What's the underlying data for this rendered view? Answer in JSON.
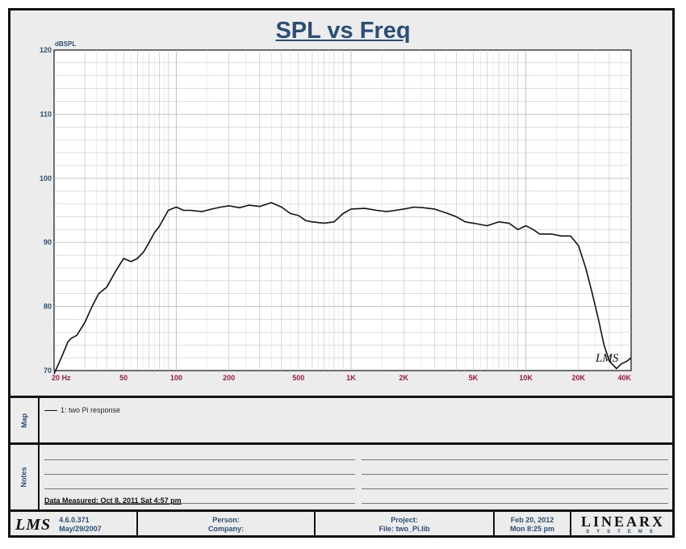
{
  "chart_data": {
    "type": "line",
    "title": "SPL vs Freq",
    "ylabel": "dBSPL",
    "xlabel": "",
    "x_scale": "log",
    "xlim": [
      20,
      40000
    ],
    "ylim": [
      70,
      120
    ],
    "grid": true,
    "x_ticks": [
      {
        "value": 20,
        "label": "20  Hz"
      },
      {
        "value": 50,
        "label": "50"
      },
      {
        "value": 100,
        "label": "100"
      },
      {
        "value": 200,
        "label": "200"
      },
      {
        "value": 500,
        "label": "500"
      },
      {
        "value": 1000,
        "label": "1K"
      },
      {
        "value": 2000,
        "label": "2K"
      },
      {
        "value": 5000,
        "label": "5K"
      },
      {
        "value": 10000,
        "label": "10K"
      },
      {
        "value": 20000,
        "label": "20K"
      },
      {
        "value": 40000,
        "label": "40K"
      }
    ],
    "y_ticks": [
      {
        "value": 70,
        "label": "70"
      },
      {
        "value": 80,
        "label": "80"
      },
      {
        "value": 90,
        "label": "90"
      },
      {
        "value": 100,
        "label": "100"
      },
      {
        "value": 110,
        "label": "110"
      },
      {
        "value": 120,
        "label": "120"
      }
    ],
    "series": [
      {
        "name": "1: two Pi response",
        "color": "#111111",
        "x": [
          20,
          22,
          24,
          25,
          27,
          30,
          33,
          36,
          40,
          45,
          50,
          55,
          60,
          65,
          70,
          75,
          80,
          90,
          100,
          110,
          120,
          140,
          160,
          180,
          200,
          230,
          260,
          300,
          350,
          400,
          450,
          500,
          550,
          600,
          700,
          800,
          900,
          1000,
          1200,
          1400,
          1600,
          1800,
          2000,
          2300,
          2600,
          3000,
          3500,
          4000,
          4500,
          5000,
          6000,
          7000,
          8000,
          9000,
          10000,
          11000,
          12000,
          14000,
          16000,
          18000,
          20000,
          22000,
          24000,
          26000,
          28000,
          30000,
          33000,
          35000,
          38000,
          40000
        ],
        "values": [
          69.5,
          72,
          74.5,
          75,
          75.5,
          77.5,
          80,
          82,
          83,
          85.5,
          87.5,
          87,
          87.5,
          88.5,
          90,
          91.5,
          92.5,
          95,
          95.5,
          95,
          95,
          94.8,
          95.2,
          95.5,
          95.7,
          95.4,
          95.8,
          95.6,
          96.2,
          95.5,
          94.5,
          94.2,
          93.4,
          93.2,
          93,
          93.2,
          94.5,
          95.2,
          95.3,
          95,
          94.8,
          95,
          95.2,
          95.5,
          95.4,
          95.2,
          94.6,
          94,
          93.2,
          93,
          92.6,
          93.2,
          93,
          92,
          92.6,
          92,
          91.3,
          91.3,
          91,
          91,
          89.5,
          86,
          82,
          78,
          74,
          71.5,
          70.3,
          71,
          71.5,
          72
        ]
      }
    ]
  },
  "map": {
    "label": "Map",
    "legend": [
      {
        "label": "1: two Pi response"
      }
    ]
  },
  "notes": {
    "label": "Notes",
    "data_measured": "Data Measured: Oct  8, 2011  Sat  4:57 pm"
  },
  "footer": {
    "logo": "LMS",
    "version": "4.6.0.371",
    "version_date": "May/29/2007",
    "person": "Person:",
    "company": "Company:",
    "project": "Project:",
    "file": "File: two_Pi.lib",
    "date": "Feb 20, 2012",
    "time": "Mon  8:25 pm",
    "brand": "LINEARX",
    "brand_sub": "SYSTEMS"
  },
  "colors": {
    "title": "#2b4e74",
    "tick_labels": "#9b1b3b",
    "curve": "#111111",
    "grid": "#bdbdbd",
    "background": "#ececec"
  }
}
